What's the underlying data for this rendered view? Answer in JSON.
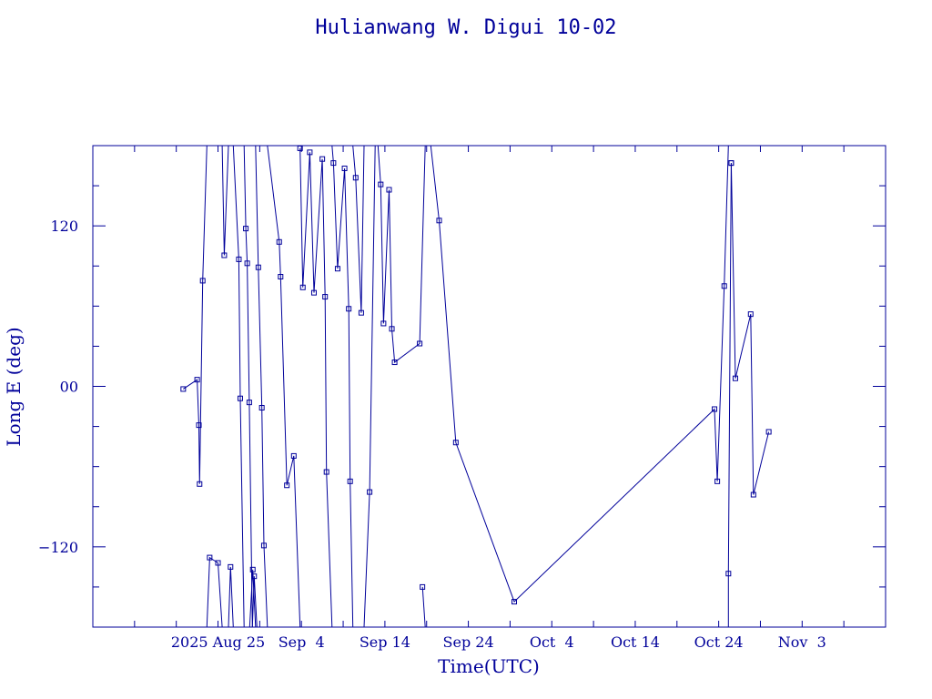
{
  "chart_data": {
    "type": "line",
    "title": "Hulianwang W. Digui 10-02",
    "xlabel": "Time(UTC)",
    "ylabel": "Long E (deg)",
    "color": "#00009a",
    "x_ticks": [
      {
        "label": "2025 Aug 25",
        "date": "2025-08-25"
      },
      {
        "label": "Sep  4",
        "date": "2025-09-04"
      },
      {
        "label": "Sep 14",
        "date": "2025-09-14"
      },
      {
        "label": "Sep 24",
        "date": "2025-09-24"
      },
      {
        "label": "Oct  4",
        "date": "2025-10-04"
      },
      {
        "label": "Oct 14",
        "date": "2025-10-14"
      },
      {
        "label": "Oct 24",
        "date": "2025-10-24"
      },
      {
        "label": "Nov  3",
        "date": "2025-11-03"
      }
    ],
    "y_ticks": [
      {
        "label": "−120",
        "value": -120
      },
      {
        "label": "00",
        "value": 0
      },
      {
        "label": "120",
        "value": 120
      }
    ],
    "xlim": [
      "2025-08-10",
      "2025-11-13"
    ],
    "ylim": [
      -180,
      180
    ],
    "segments": [
      [
        [
          "2025-08-20T20:00",
          -2
        ],
        [
          "2025-08-22T12:00",
          5
        ],
        [
          "2025-08-22T17:00",
          -29
        ],
        [
          "2025-08-22T19:00",
          -73
        ],
        [
          "2025-08-23T04:00",
          79
        ],
        [
          "2025-08-23T16:00",
          180
        ]
      ],
      [
        [
          "2025-08-23T16:00",
          -180
        ],
        [
          "2025-08-24T00:00",
          -128
        ],
        [
          "2025-08-25T00:00",
          -132
        ],
        [
          "2025-08-25T12:00",
          -180
        ]
      ],
      [
        [
          "2025-08-25T12:00",
          180
        ],
        [
          "2025-08-25T18:00",
          98
        ],
        [
          "2025-08-26T06:00",
          180
        ]
      ],
      [
        [
          "2025-08-26T06:00",
          -180
        ],
        [
          "2025-08-26T12:00",
          -135
        ],
        [
          "2025-08-26T20:00",
          -180
        ]
      ],
      [
        [
          "2025-08-26T20:00",
          180
        ],
        [
          "2025-08-27T12:00",
          95
        ],
        [
          "2025-08-27T16:00",
          -9
        ],
        [
          "2025-08-28T03:00",
          -180
        ]
      ],
      [
        [
          "2025-08-28T03:00",
          180
        ],
        [
          "2025-08-28T08:00",
          118
        ],
        [
          "2025-08-28T12:00",
          92
        ],
        [
          "2025-08-28T18:00",
          -12
        ],
        [
          "2025-08-29T03:00",
          -180
        ]
      ],
      [
        [
          "2025-08-29T03:00",
          -180
        ],
        [
          "2025-08-29T08:00",
          -142
        ],
        [
          "2025-08-29T16:00",
          -180
        ]
      ],
      [
        [
          "2025-08-28T19:00",
          -180
        ],
        [
          "2025-08-29T04:00",
          -137
        ],
        [
          "2025-08-29T12:00",
          -180
        ]
      ],
      [
        [
          "2025-08-29T12:00",
          180
        ],
        [
          "2025-08-29T20:00",
          89
        ],
        [
          "2025-08-30T06:00",
          -16
        ],
        [
          "2025-08-30T12:00",
          -119
        ],
        [
          "2025-08-30T22:00",
          -180
        ]
      ],
      [
        [
          "2025-08-30T22:00",
          180
        ],
        [
          "2025-09-01T08:00",
          108
        ],
        [
          "2025-09-01T12:00",
          82
        ],
        [
          "2025-09-02T06:00",
          -74
        ],
        [
          "2025-09-03T02:00",
          -52
        ],
        [
          "2025-09-03T20:00",
          -180
        ]
      ],
      [
        [
          "2025-09-03T20:00",
          178
        ],
        [
          "2025-09-04T04:00",
          74
        ],
        [
          "2025-09-05T00:00",
          175
        ],
        [
          "2025-09-05T12:00",
          70
        ],
        [
          "2025-09-06T12:00",
          170
        ],
        [
          "2025-09-06T20:00",
          67
        ],
        [
          "2025-09-07T00:00",
          -64
        ],
        [
          "2025-09-07T16:00",
          -180
        ]
      ],
      [
        [
          "2025-09-07T16:00",
          180
        ],
        [
          "2025-09-07T20:00",
          167
        ],
        [
          "2025-09-08T08:00",
          88
        ],
        [
          "2025-09-09T04:00",
          163
        ],
        [
          "2025-09-09T16:00",
          58
        ],
        [
          "2025-09-09T20:00",
          -71
        ],
        [
          "2025-09-10T04:00",
          -180
        ]
      ],
      [
        [
          "2025-09-10T04:00",
          180
        ],
        [
          "2025-09-10T12:00",
          156
        ],
        [
          "2025-09-11T04:00",
          55
        ],
        [
          "2025-09-11T12:00",
          180
        ]
      ],
      [
        [
          "2025-09-11T12:00",
          -180
        ],
        [
          "2025-09-12T04:00",
          -79
        ],
        [
          "2025-09-12T20:00",
          180
        ]
      ],
      [
        [
          "2025-09-12T20:00",
          -180
        ],
        [
          "2025-09-13T08:00",
          -180
        ]
      ],
      [
        [
          "2025-09-13T04:00",
          180
        ],
        [
          "2025-09-13T12:00",
          151
        ],
        [
          "2025-09-13T20:00",
          47
        ],
        [
          "2025-09-14T12:00",
          147
        ],
        [
          "2025-09-14T20:00",
          43
        ],
        [
          "2025-09-15T04:00",
          18
        ],
        [
          "2025-09-18T04:00",
          32
        ],
        [
          "2025-09-18T20:00",
          180
        ]
      ],
      [
        [
          "2025-09-18T20:00",
          -180
        ],
        [
          "2025-09-18T12:00",
          -150
        ]
      ],
      [
        [
          "2025-09-19T12:00",
          180
        ],
        [
          "2025-09-20T12:00",
          124
        ],
        [
          "2025-09-22T12:00",
          -42
        ],
        [
          "2025-09-29T12:00",
          -161
        ],
        [
          "2025-10-23T12:00",
          -17
        ],
        [
          "2025-10-23T20:00",
          -71
        ],
        [
          "2025-10-24T16:00",
          75
        ],
        [
          "2025-10-25T04:00",
          180
        ]
      ],
      [
        [
          "2025-10-25T04:00",
          -180
        ],
        [
          "2025-10-25T04:00",
          -140
        ],
        [
          "2025-10-25T12:00",
          167
        ]
      ],
      [
        [
          "2025-10-25T12:00",
          167
        ],
        [
          "2025-10-26T00:00",
          6
        ],
        [
          "2025-10-27T20:00",
          54
        ],
        [
          "2025-10-28T04:00",
          -81
        ],
        [
          "2025-10-30T00:00",
          -34
        ]
      ]
    ]
  }
}
